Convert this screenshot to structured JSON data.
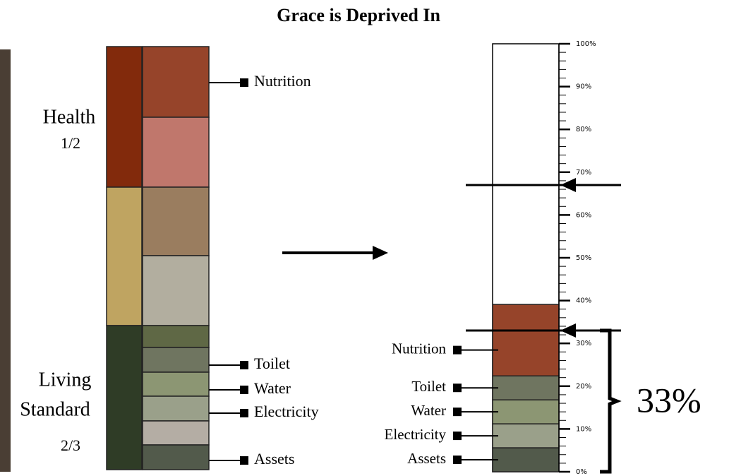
{
  "title": "Grace is Deprived In",
  "left": {
    "health": {
      "label": "Health",
      "weight": "1/2"
    },
    "living": {
      "label_lines": [
        "Living",
        "Standard"
      ],
      "weight": "2/3"
    },
    "indicators": [
      "Nutrition",
      "Toilet",
      "Water",
      "Electricity",
      "Assets"
    ]
  },
  "scale": {
    "ylim": [
      0,
      100
    ],
    "yticks": [
      {
        "value": 0,
        "label": "0%"
      },
      {
        "value": 10,
        "label": "10%"
      },
      {
        "value": 20,
        "label": "20%"
      },
      {
        "value": 30,
        "label": "30%"
      },
      {
        "value": 40,
        "label": "40%"
      },
      {
        "value": 50,
        "label": "50%"
      },
      {
        "value": 60,
        "label": "60%"
      },
      {
        "value": 70,
        "label": "70%"
      },
      {
        "value": 80,
        "label": "80%"
      },
      {
        "value": 90,
        "label": "90%"
      },
      {
        "value": 100,
        "label": "100%"
      }
    ],
    "minor_tick_step": 2,
    "segments": [
      {
        "name": "Assets",
        "value": 5.6,
        "color": "#525a4b"
      },
      {
        "name": "Electricity",
        "value": 5.6,
        "color": "#9aa08a"
      },
      {
        "name": "Water",
        "value": 5.6,
        "color": "#8c9673"
      },
      {
        "name": "Toilet",
        "value": 5.6,
        "color": "#6f7560"
      },
      {
        "name": "Nutrition",
        "value": 16.7,
        "color": "#96442a"
      }
    ],
    "cutoffs": [
      {
        "value": 33,
        "label": "33%"
      },
      {
        "value": 67
      }
    ]
  }
}
